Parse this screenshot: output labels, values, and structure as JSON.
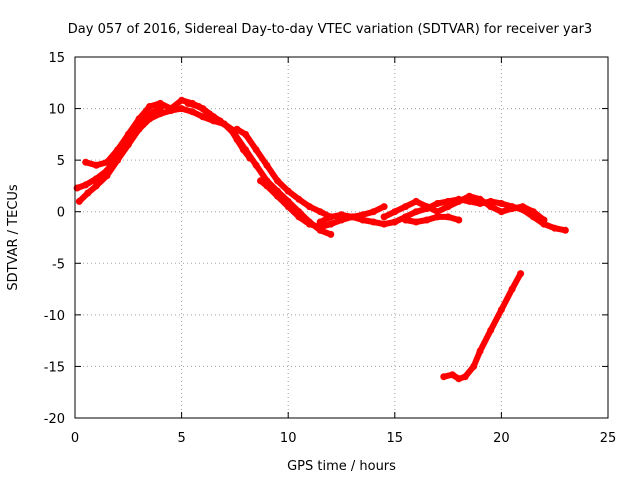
{
  "chart_data": {
    "type": "line",
    "title": "Day 057 of 2016, Sidereal Day-to-day VTEC variation (SDTVAR) for receiver yar3",
    "xlabel": "GPS time / hours",
    "ylabel": "SDTVAR / TECUs",
    "xlim": [
      0,
      25
    ],
    "ylim": [
      -20,
      15
    ],
    "xticks": [
      0,
      5,
      10,
      15,
      20,
      25
    ],
    "yticks": [
      -20,
      -15,
      -10,
      -5,
      0,
      5,
      10,
      15
    ],
    "grid": true,
    "color": "#ff0000",
    "series": [
      {
        "name": "track-a",
        "x": [
          0.2,
          0.6,
          1.0,
          1.5,
          2.0,
          2.5,
          3.0,
          3.5,
          4.0,
          4.5,
          5.0,
          5.5,
          6.0,
          6.5,
          7.0,
          7.5,
          8.0,
          8.5,
          9.0,
          9.5,
          10.0,
          10.5,
          11.0,
          11.5,
          12.0
        ],
        "y": [
          1.0,
          1.8,
          2.5,
          3.5,
          5.0,
          6.5,
          8.0,
          9.0,
          9.5,
          9.8,
          10.0,
          9.7,
          9.2,
          8.8,
          8.5,
          7.5,
          6.0,
          4.5,
          3.0,
          2.0,
          1.0,
          0.0,
          -1.0,
          -1.8,
          -2.2
        ]
      },
      {
        "name": "track-b",
        "x": [
          0.5,
          1.0,
          1.5,
          2.0,
          2.5,
          3.0,
          3.5,
          4.0,
          4.5,
          5.0,
          5.5,
          6.0,
          6.5,
          7.0,
          7.5
        ],
        "y": [
          4.8,
          4.5,
          4.8,
          6.0,
          7.5,
          9.0,
          10.2,
          10.5,
          10.0,
          10.8,
          10.5,
          10.0,
          9.2,
          8.5,
          7.8
        ]
      },
      {
        "name": "track-c",
        "x": [
          0.1,
          0.5,
          1.0,
          1.5,
          2.0,
          2.5,
          3.0,
          3.5,
          4.0
        ],
        "y": [
          2.3,
          2.6,
          3.2,
          4.0,
          5.5,
          7.0,
          8.5,
          9.5,
          10.0
        ]
      },
      {
        "name": "track-d",
        "x": [
          5.3,
          5.8,
          6.3,
          6.8,
          7.3,
          7.6,
          7.9,
          8.2
        ],
        "y": [
          10.5,
          10.2,
          9.5,
          8.8,
          8.0,
          7.0,
          6.0,
          5.2
        ]
      },
      {
        "name": "track-e",
        "x": [
          7.6,
          8.0,
          8.5,
          9.0,
          9.5,
          10.0,
          10.5,
          11.0,
          11.5,
          12.0
        ],
        "y": [
          8.0,
          7.5,
          6.0,
          4.5,
          3.0,
          2.0,
          1.2,
          0.5,
          0.0,
          -0.5
        ]
      },
      {
        "name": "track-f",
        "x": [
          8.7,
          9.0,
          9.5,
          10.0,
          10.5,
          11.0,
          11.5,
          12.0,
          12.5,
          13.0,
          13.5,
          14.0,
          14.5
        ],
        "y": [
          3.0,
          2.5,
          1.5,
          0.5,
          -0.5,
          -1.2,
          -1.5,
          -1.2,
          -0.8,
          -0.5,
          -0.3,
          0.0,
          0.5
        ]
      },
      {
        "name": "track-g",
        "x": [
          11.5,
          12.0,
          12.5,
          13.0,
          13.5,
          14.0,
          14.5,
          15.0,
          15.5,
          16.0,
          16.5,
          17.0,
          17.5,
          18.0,
          18.5,
          19.0,
          19.5,
          20.0,
          20.5,
          21.0,
          21.5,
          22.0,
          22.5,
          23.0
        ],
        "y": [
          -1.0,
          -0.5,
          -0.3,
          -0.5,
          -0.8,
          -1.0,
          -1.2,
          -1.0,
          -0.5,
          0.0,
          0.3,
          0.8,
          1.0,
          1.2,
          1.0,
          0.8,
          1.0,
          0.8,
          0.5,
          0.2,
          -0.5,
          -1.2,
          -1.6,
          -1.8
        ]
      },
      {
        "name": "track-h",
        "x": [
          14.5,
          15.0,
          15.5,
          16.0,
          16.5,
          17.0,
          17.5,
          18.0,
          18.5,
          19.0,
          19.5,
          20.0,
          20.5,
          21.0,
          21.5,
          22.0
        ],
        "y": [
          -0.5,
          0.0,
          0.5,
          1.0,
          0.5,
          0.0,
          0.5,
          1.0,
          1.5,
          1.2,
          0.5,
          0.0,
          0.3,
          0.5,
          0.0,
          -0.8
        ]
      },
      {
        "name": "track-i",
        "x": [
          15.5,
          16.0,
          16.5,
          17.0,
          17.5,
          18.0
        ],
        "y": [
          -0.8,
          -1.0,
          -0.8,
          -0.5,
          -0.5,
          -0.8
        ]
      },
      {
        "name": "track-j",
        "x": [
          17.3,
          17.7,
          18.0,
          18.3,
          18.7,
          19.0,
          19.5,
          20.0,
          20.5,
          20.9
        ],
        "y": [
          -16.0,
          -15.8,
          -16.2,
          -16.0,
          -15.0,
          -13.5,
          -11.5,
          -9.5,
          -7.5,
          -6.0
        ]
      }
    ]
  }
}
